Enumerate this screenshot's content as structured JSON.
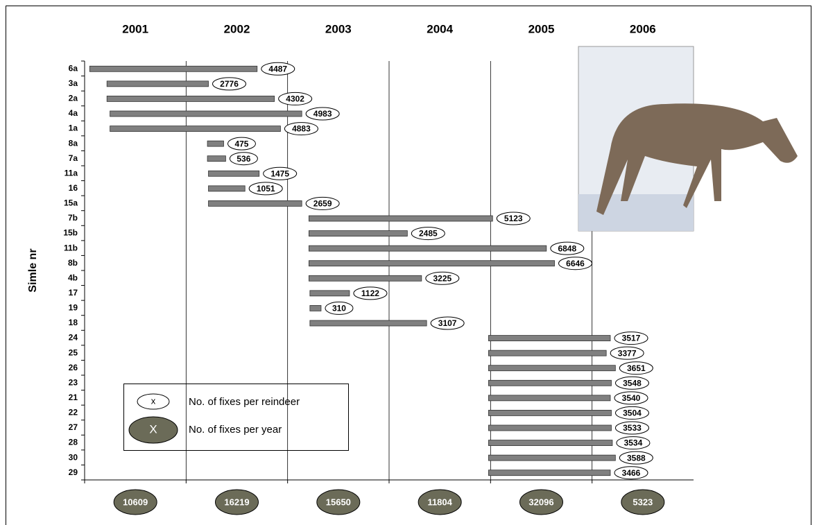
{
  "chart_data": {
    "type": "gantt",
    "y_label": "Simle nr",
    "xlim": [
      2001,
      2007
    ],
    "years": [
      2001,
      2002,
      2003,
      2004,
      2005,
      2006
    ],
    "fixes_per_year": [
      10609,
      16219,
      15650,
      11804,
      32096,
      5323
    ],
    "bar_color": "#808080",
    "total_color": "#6b6b58",
    "grid": true,
    "legend": {
      "single_symbol": "x",
      "single_label": "No. of fixes per reindeer",
      "total_symbol": "X",
      "total_label": "No. of fixes per year"
    },
    "rows": [
      {
        "name": "6a",
        "start": 2001.05,
        "end": 2002.7,
        "fixes": 4487
      },
      {
        "name": "3a",
        "start": 2001.22,
        "end": 2002.22,
        "fixes": 2776
      },
      {
        "name": "2a",
        "start": 2001.22,
        "end": 2002.87,
        "fixes": 4302
      },
      {
        "name": "4a",
        "start": 2001.25,
        "end": 2003.14,
        "fixes": 4983
      },
      {
        "name": "1a",
        "start": 2001.25,
        "end": 2002.93,
        "fixes": 4883
      },
      {
        "name": "8a",
        "start": 2002.21,
        "end": 2002.37,
        "fixes": 475
      },
      {
        "name": "7a",
        "start": 2002.21,
        "end": 2002.39,
        "fixes": 536
      },
      {
        "name": "11a",
        "start": 2002.22,
        "end": 2002.72,
        "fixes": 1475
      },
      {
        "name": "16",
        "start": 2002.22,
        "end": 2002.58,
        "fixes": 1051
      },
      {
        "name": "15a",
        "start": 2002.22,
        "end": 2003.14,
        "fixes": 2659
      },
      {
        "name": "7b",
        "start": 2003.21,
        "end": 2005.02,
        "fixes": 5123
      },
      {
        "name": "15b",
        "start": 2003.21,
        "end": 2004.18,
        "fixes": 2485
      },
      {
        "name": "11b",
        "start": 2003.21,
        "end": 2005.55,
        "fixes": 6848
      },
      {
        "name": "8b",
        "start": 2003.21,
        "end": 2005.63,
        "fixes": 6646
      },
      {
        "name": "4b",
        "start": 2003.21,
        "end": 2004.32,
        "fixes": 3225
      },
      {
        "name": "17",
        "start": 2003.22,
        "end": 2003.61,
        "fixes": 1122
      },
      {
        "name": "19",
        "start": 2003.22,
        "end": 2003.33,
        "fixes": 310
      },
      {
        "name": "18",
        "start": 2003.22,
        "end": 2004.37,
        "fixes": 3107
      },
      {
        "name": "24",
        "start": 2004.98,
        "end": 2006.18,
        "fixes": 3517
      },
      {
        "name": "25",
        "start": 2004.98,
        "end": 2006.14,
        "fixes": 3377
      },
      {
        "name": "26",
        "start": 2004.98,
        "end": 2006.23,
        "fixes": 3651
      },
      {
        "name": "23",
        "start": 2004.98,
        "end": 2006.19,
        "fixes": 3548
      },
      {
        "name": "21",
        "start": 2004.98,
        "end": 2006.18,
        "fixes": 3540
      },
      {
        "name": "22",
        "start": 2004.98,
        "end": 2006.19,
        "fixes": 3504
      },
      {
        "name": "27",
        "start": 2004.98,
        "end": 2006.19,
        "fixes": 3533
      },
      {
        "name": "28",
        "start": 2004.98,
        "end": 2006.2,
        "fixes": 3534
      },
      {
        "name": "30",
        "start": 2004.98,
        "end": 2006.23,
        "fixes": 3588
      },
      {
        "name": "29",
        "start": 2004.98,
        "end": 2006.18,
        "fixes": 3466
      }
    ]
  }
}
